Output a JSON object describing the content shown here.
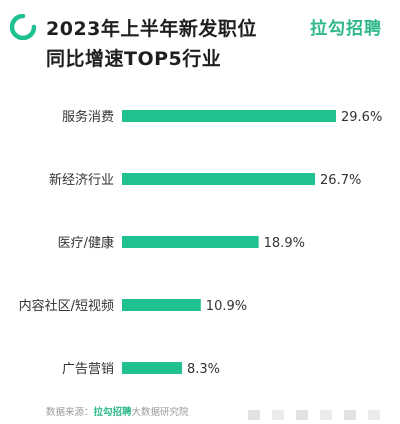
{
  "header": {
    "title_line1": "2023年上半年新发职位",
    "title_line2": "同比增速TOP5行业",
    "brand": "拉勾招聘"
  },
  "colors": {
    "bar": "#20c190",
    "brand": "#2fb88a"
  },
  "chart_data": {
    "type": "bar",
    "orientation": "horizontal",
    "categories": [
      "服务消费",
      "新经济行业",
      "医疗/健康",
      "内容社区/短视频",
      "广告营销"
    ],
    "values": [
      29.6,
      26.7,
      18.9,
      10.9,
      8.3
    ],
    "value_labels": [
      "29.6%",
      "26.7%",
      "18.9%",
      "10.9%",
      "8.3%"
    ],
    "xlim": [
      0,
      29.6
    ],
    "grid": false,
    "legend": false
  },
  "footer": {
    "source_label": "数据来源：",
    "source_brand": "拉勾招聘",
    "source_suffix": "大数据研究院"
  }
}
